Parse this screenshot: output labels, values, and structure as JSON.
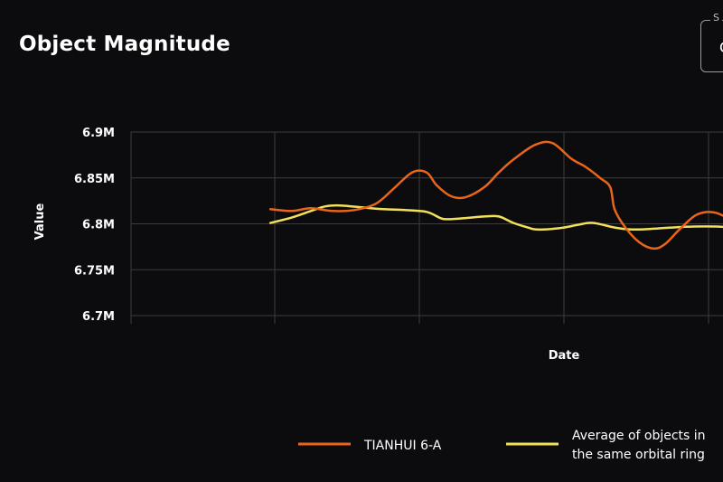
{
  "title": "Object Magnitude",
  "selector": {
    "label": "S",
    "value": "C"
  },
  "colors": {
    "primary": "#e8651a",
    "average": "#f2e05a",
    "grid": "#3c3c3c",
    "background": "#0c0c0e"
  },
  "chart_data": {
    "type": "line",
    "xlabel": "Date",
    "ylabel": "Value",
    "ylim": [
      6700000,
      6900000
    ],
    "y_ticks": [
      {
        "value": 6900000,
        "label": "6.9M"
      },
      {
        "value": 6850000,
        "label": "6.85M"
      },
      {
        "value": 6800000,
        "label": "6.8M"
      },
      {
        "value": 6750000,
        "label": "6.75M"
      },
      {
        "value": 6700000,
        "label": "6.7M"
      }
    ],
    "x_range": [
      0,
      4
    ],
    "x_gridlines": [
      0,
      1,
      2,
      3,
      4
    ],
    "grid": true,
    "legend_position": "bottom",
    "series": [
      {
        "name": "TIANHUI 6-A",
        "color": "#e8651a",
        "x": [
          -0.03,
          0.12,
          0.25,
          0.4,
          0.55,
          0.7,
          0.82,
          0.95,
          1.05,
          1.12,
          1.22,
          1.32,
          1.45,
          1.55,
          1.65,
          1.8,
          1.92,
          2.05,
          2.15,
          2.25,
          2.32,
          2.35,
          2.42,
          2.52,
          2.62,
          2.7,
          2.8,
          2.92,
          3.05,
          3.2,
          3.3,
          3.4,
          3.55,
          3.65,
          3.8
        ],
        "y": [
          6816000,
          6814000,
          6817000,
          6814000,
          6815000,
          6822000,
          6838000,
          6856000,
          6856000,
          6842000,
          6830000,
          6829000,
          6840000,
          6856000,
          6870000,
          6886000,
          6888000,
          6871000,
          6862000,
          6850000,
          6840000,
          6816000,
          6797000,
          6780000,
          6773000,
          6778000,
          6794000,
          6810000,
          6812000,
          6800000,
          6790000,
          6787000,
          6780000,
          6786000,
          6800000
        ]
      },
      {
        "name": "Average of objects in the same orbital ring",
        "color": "#f2e05a",
        "x": [
          -0.03,
          0.12,
          0.25,
          0.35,
          0.45,
          0.6,
          0.75,
          0.9,
          1.05,
          1.15,
          1.2,
          1.3,
          1.45,
          1.55,
          1.65,
          1.75,
          1.8,
          1.88,
          2.0,
          2.1,
          2.2,
          2.35,
          2.45,
          2.55,
          2.65,
          2.75,
          2.9,
          3.05,
          3.2,
          3.35,
          3.5,
          3.65,
          3.8
        ],
        "y": [
          6801000,
          6807000,
          6814000,
          6819000,
          6820000,
          6818000,
          6816000,
          6815000,
          6813000,
          6806000,
          6805000,
          6806000,
          6808000,
          6808000,
          6801000,
          6796000,
          6794000,
          6794000,
          6796000,
          6799000,
          6801000,
          6796000,
          6794000,
          6794000,
          6795000,
          6796000,
          6797000,
          6797000,
          6796000,
          6797000,
          6797000,
          6797000,
          6797000
        ]
      }
    ]
  }
}
